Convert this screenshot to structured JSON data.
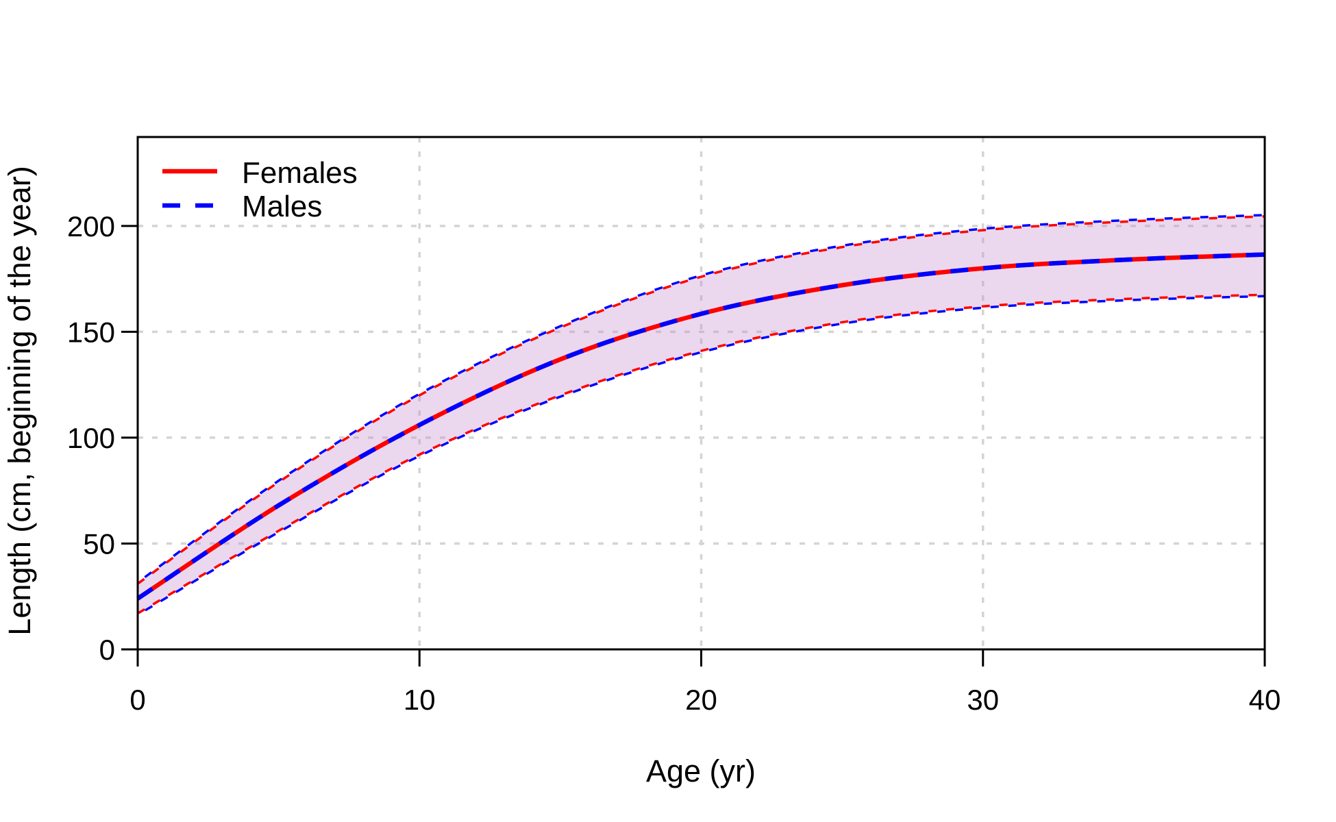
{
  "chart_data": {
    "type": "line",
    "title": "",
    "xlabel": "Age (yr)",
    "ylabel": "Length (cm, beginning of the year)",
    "xlim": [
      0,
      40
    ],
    "ylim": [
      0,
      242
    ],
    "x_ticks": [
      "0",
      "10",
      "20",
      "30",
      "40"
    ],
    "x_tick_values": [
      0,
      10,
      20,
      30,
      40
    ],
    "y_ticks": [
      "0",
      "50",
      "100",
      "150",
      "200"
    ],
    "y_tick_values": [
      0,
      50,
      100,
      150,
      200
    ],
    "grid": {
      "show": true,
      "x_values": [
        10,
        20,
        30
      ],
      "y_values": [
        50,
        100,
        150,
        200
      ],
      "color": "#d4d4d4"
    },
    "x": [
      0,
      5,
      10,
      15,
      20,
      25,
      30,
      35,
      40
    ],
    "series": [
      {
        "name": "Females",
        "color": "#ff0000",
        "style": "solid",
        "values": [
          24,
          68,
          106,
          137,
          158.5,
          172,
          180,
          184,
          186.5
        ]
      },
      {
        "name": "Males",
        "color": "#0000ff",
        "style": "dashed",
        "values": [
          24,
          68,
          106,
          137,
          158.5,
          172,
          180,
          184,
          186.5
        ]
      }
    ],
    "confidence_band": {
      "lower": [
        17,
        56,
        92,
        120,
        141,
        154.5,
        162,
        165.5,
        167.5
      ],
      "upper": [
        31,
        79,
        120,
        152,
        176,
        190,
        198,
        202,
        204.5
      ],
      "fill": "rgba(193,134,206,0.32)",
      "edge_colors": [
        "#ff0000",
        "#0000ff"
      ]
    },
    "legend": {
      "position": "topleft",
      "entries": [
        {
          "label": "Females",
          "color": "#ff0000",
          "style": "solid"
        },
        {
          "label": "Males",
          "color": "#0000ff",
          "style": "dashed"
        }
      ]
    },
    "axis_color": "#000000",
    "background": "#ffffff"
  }
}
